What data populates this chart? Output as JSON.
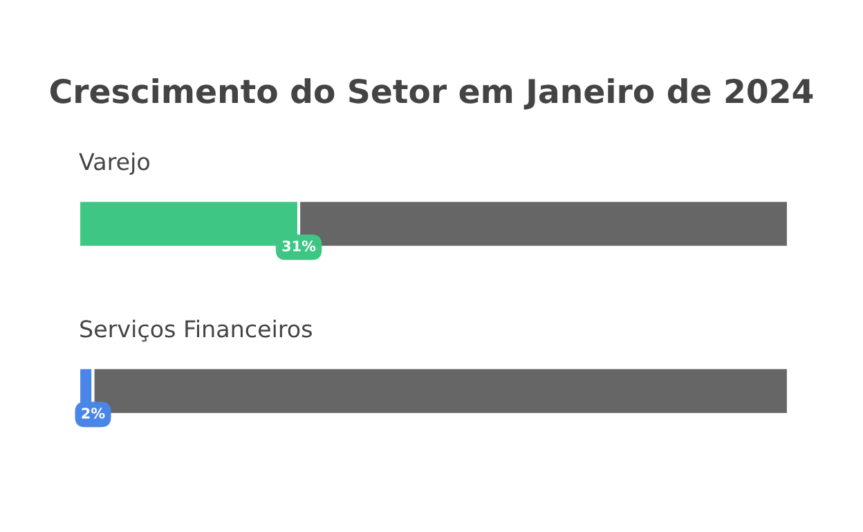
{
  "chart_data": {
    "type": "bar",
    "orientation": "horizontal",
    "stacked": true,
    "title": "Crescimento do Setor em Janeiro de 2024",
    "categories": [
      "Varejo",
      "Serviços Financeiros"
    ],
    "series": [
      {
        "colors": [
          "#3ec784",
          "#4a86e8"
        ],
        "values": [
          31,
          2
        ],
        "value_labels": [
          "31%",
          "2%"
        ]
      },
      {
        "color": "#666666",
        "values": [
          69,
          98
        ]
      }
    ],
    "tick_labels": false
  }
}
